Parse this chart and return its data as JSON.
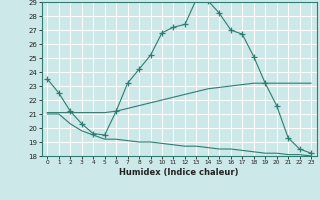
{
  "xlabel": "Humidex (Indice chaleur)",
  "x": [
    0,
    1,
    2,
    3,
    4,
    5,
    6,
    7,
    8,
    9,
    10,
    11,
    12,
    13,
    14,
    15,
    16,
    17,
    18,
    19,
    20,
    21,
    22,
    23
  ],
  "main_line": [
    23.5,
    22.5,
    21.2,
    20.3,
    19.6,
    19.5,
    21.2,
    23.2,
    24.2,
    25.2,
    26.8,
    27.2,
    27.4,
    29.2,
    29.1,
    28.2,
    27.0,
    26.7,
    25.1,
    23.2,
    21.6,
    19.3,
    18.5,
    18.2
  ],
  "upper_band": [
    21.1,
    21.1,
    21.1,
    21.1,
    21.1,
    21.1,
    21.2,
    21.4,
    21.6,
    21.8,
    22.0,
    22.2,
    22.4,
    22.6,
    22.8,
    22.9,
    23.0,
    23.1,
    23.2,
    23.2,
    23.2,
    23.2,
    23.2,
    23.2
  ],
  "lower_band": [
    21.0,
    21.0,
    20.3,
    19.8,
    19.5,
    19.2,
    19.2,
    19.1,
    19.0,
    19.0,
    18.9,
    18.8,
    18.7,
    18.7,
    18.6,
    18.5,
    18.5,
    18.4,
    18.3,
    18.2,
    18.2,
    18.1,
    18.1,
    18.0
  ],
  "ylim": [
    18,
    29
  ],
  "xlim": [
    -0.5,
    23.5
  ],
  "yticks": [
    18,
    19,
    20,
    21,
    22,
    23,
    24,
    25,
    26,
    27,
    28,
    29
  ],
  "xticks": [
    0,
    1,
    2,
    3,
    4,
    5,
    6,
    7,
    8,
    9,
    10,
    11,
    12,
    13,
    14,
    15,
    16,
    17,
    18,
    19,
    20,
    21,
    22,
    23
  ],
  "line_color": "#2e7d72",
  "bg_color": "#cce8e8",
  "grid_color": "#b0d8d8"
}
